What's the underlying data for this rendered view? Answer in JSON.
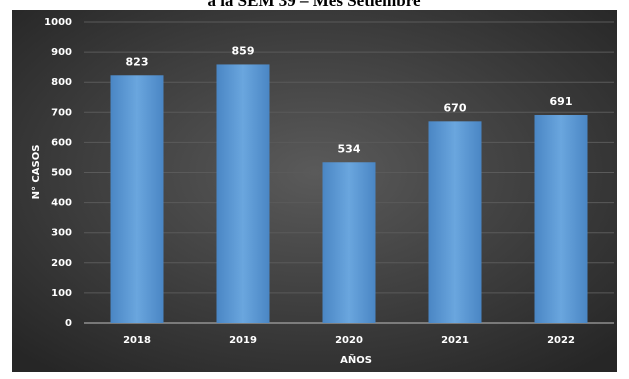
{
  "chart_data": {
    "type": "bar",
    "title": "a la SEM 39 – Mes Setiembre",
    "categories": [
      "2018",
      "2019",
      "2020",
      "2021",
      "2022"
    ],
    "values": [
      823,
      859,
      534,
      670,
      691
    ],
    "color": "#5b9bd5",
    "xlabel": "AÑOS",
    "ylabel": "N° CASOS",
    "ylim": [
      0,
      1000
    ],
    "yticks": [
      0,
      100,
      200,
      300,
      400,
      500,
      600,
      700,
      800,
      900,
      1000
    ],
    "grid": true
  }
}
